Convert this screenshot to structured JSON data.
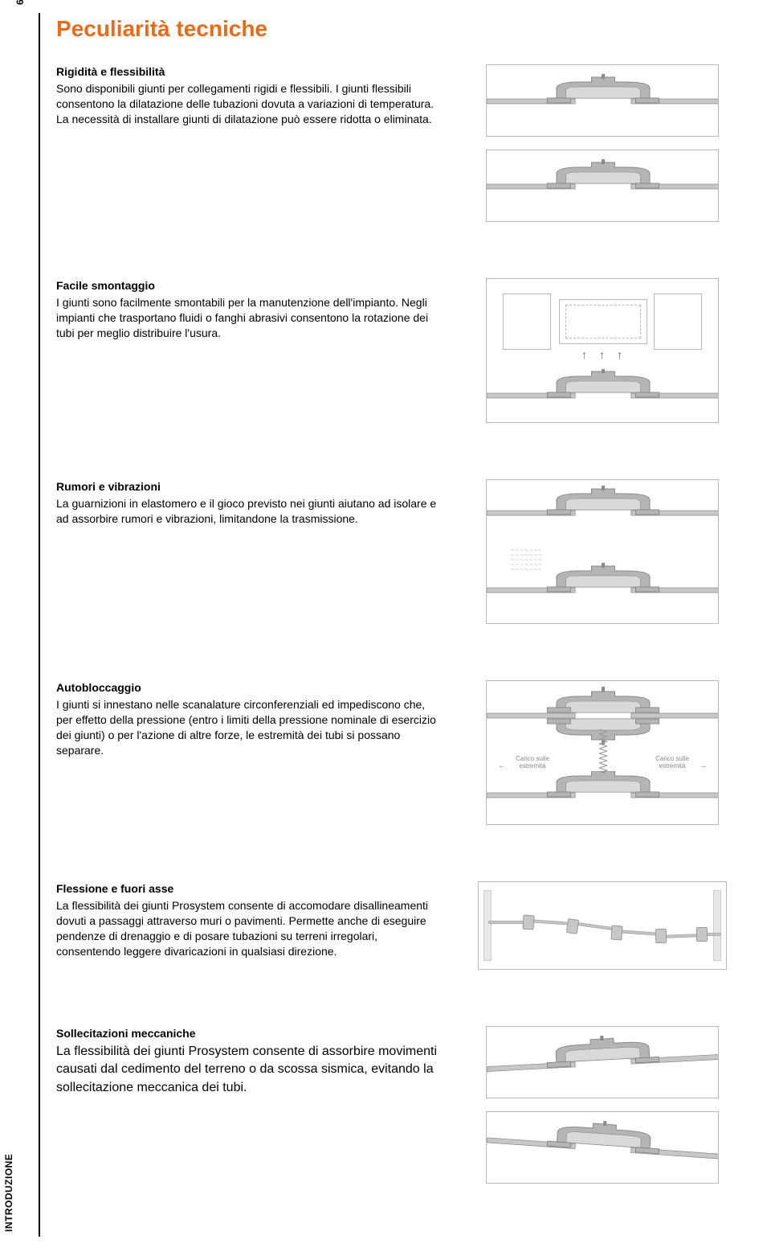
{
  "page_number": "6",
  "side_label": "INTRODUZIONE",
  "title": "Peculiarità tecniche",
  "title_color": "#e86b1c",
  "sections": [
    {
      "heading": "Rigidità e flessibilità",
      "body": "Sono disponibili giunti per collegamenti rigidi e flessibili. I giunti flessibili consentono la dilatazione delle tubazioni dovuta a variazioni di temperatura. La necessità di installare giunti di dilatazione può essere ridotta o eliminata."
    },
    {
      "heading": "Facile smontaggio",
      "body": "I giunti sono facilmente smontabili per la manutenzione dell'impianto. Negli impianti che trasportano fluidi o fanghi abrasivi consentono la rotazione dei tubi per meglio distribuire l'usura."
    },
    {
      "heading": "Rumori e vibrazioni",
      "body": "La guarnizioni in elastomero e il gioco previsto nei giunti aiutano ad isolare e ad assorbire rumori e vibrazioni, limitandone la trasmissione."
    },
    {
      "heading": "Autobloccaggio",
      "body": "I giunti si innestano nelle scanalature circonferenziali ed impediscono che, per effetto della pressione (entro i limiti della pressione nominale di esercizio dei giunti) o per l'azione di altre forze, le estremità dei tubi si possano separare."
    },
    {
      "heading": "Flessione e fuori asse",
      "body": "La flessibilità dei giunti Prosystem consente di accomodare disallineamenti dovuti a passaggi attraverso muri o pavimenti. Permette anche di eseguire pendenze di drenaggio e di posare tubazioni su terreni irregolari, consentendo leggere divaricazioni in qualsiasi direzione."
    },
    {
      "heading": "Sollecitazioni meccaniche",
      "body": "La flessibilità dei giunti Prosystem consente di assorbire movimenti causati dal cedimento del terreno o da scossa sismica, evitando la sollecitazione meccanica dei tubi.",
      "large": true
    }
  ],
  "autoblock_labels": {
    "left": "Carico sulle estremità",
    "right": "Carico sulle estremità"
  },
  "colors": {
    "housing_fill": "#b5b5b5",
    "housing_stroke": "#8a8a8a",
    "pipe_fill": "#c7c7c7",
    "gasket_fill": "#d9d9d9",
    "border": "#bbbbbb"
  }
}
